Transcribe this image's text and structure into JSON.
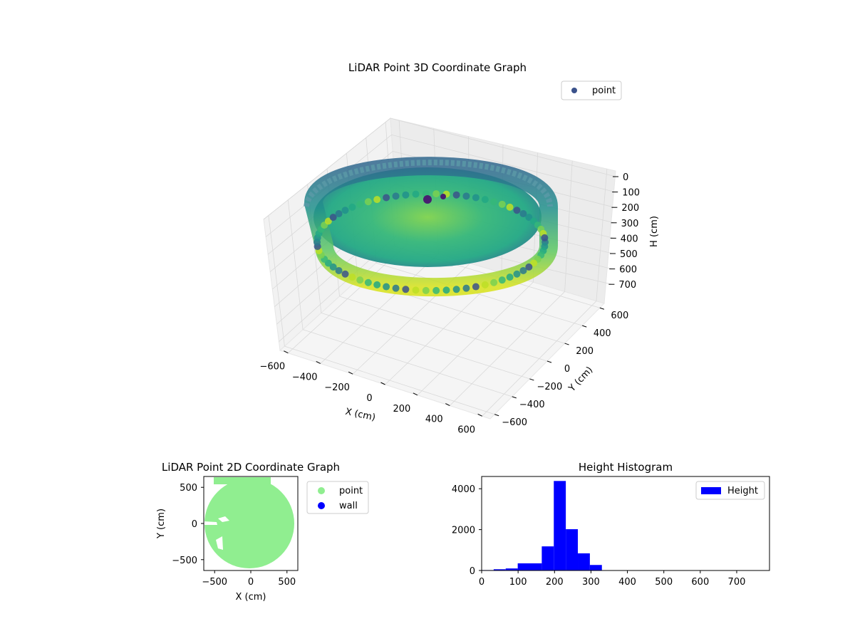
{
  "chart_data": [
    {
      "type": "scatter",
      "subtype": "3d",
      "title": "LiDAR Point 3D Coordinate Graph",
      "xlabel": "X (cm)",
      "ylabel": "Y (cm)",
      "zlabel": "H (cm)",
      "xticks": [
        "−600",
        "−400",
        "−200",
        "0",
        "200",
        "400",
        "600"
      ],
      "yticks": [
        "−600",
        "−400",
        "−200",
        "0",
        "200",
        "400",
        "600"
      ],
      "zticks": [
        "0",
        "100",
        "200",
        "300",
        "400",
        "500",
        "600",
        "700"
      ],
      "xlim": [
        -650,
        650
      ],
      "ylim": [
        -650,
        650
      ],
      "zlim": [
        0,
        750
      ],
      "z_inverted": true,
      "grid": true,
      "legend": {
        "position": "top-right",
        "entries": [
          {
            "label": "point",
            "color": "#3b528b"
          }
        ]
      },
      "colormap": "viridis"
    },
    {
      "type": "scatter",
      "title": "LiDAR Point 2D Coordinate Graph",
      "xlabel": "X (cm)",
      "ylabel": "Y (cm)",
      "xticks": [
        "−500",
        "0",
        "500"
      ],
      "yticks": [
        "500",
        "0",
        "−500"
      ],
      "xlim": [
        -650,
        650
      ],
      "ylim": [
        -650,
        650
      ],
      "grid": false,
      "series": [
        {
          "name": "point",
          "color": "#90ee90"
        },
        {
          "name": "wall",
          "color": "#0000ff"
        }
      ],
      "legend": {
        "position": "outside-right",
        "entries": [
          "point",
          "wall"
        ]
      }
    },
    {
      "type": "bar",
      "subtype": "histogram",
      "title": "Height Histogram",
      "xlabel": "",
      "ylabel": "",
      "xticks": [
        "0",
        "100",
        "200",
        "300",
        "400",
        "500",
        "600",
        "700"
      ],
      "yticks": [
        "0",
        "2000",
        "4000"
      ],
      "xlim": [
        0,
        790
      ],
      "ylim": [
        0,
        4600
      ],
      "bin_width": 33,
      "bins": [
        {
          "x0": 0,
          "x1": 33,
          "count": 20
        },
        {
          "x0": 33,
          "x1": 66,
          "count": 60
        },
        {
          "x0": 66,
          "x1": 99,
          "count": 100
        },
        {
          "x0": 99,
          "x1": 132,
          "count": 350
        },
        {
          "x0": 132,
          "x1": 165,
          "count": 350
        },
        {
          "x0": 165,
          "x1": 198,
          "count": 1180
        },
        {
          "x0": 198,
          "x1": 231,
          "count": 4380
        },
        {
          "x0": 231,
          "x1": 264,
          "count": 2020
        },
        {
          "x0": 264,
          "x1": 297,
          "count": 840
        },
        {
          "x0": 297,
          "x1": 330,
          "count": 270
        }
      ],
      "series": [
        {
          "name": "Height",
          "color": "#0000ff"
        }
      ],
      "legend": {
        "position": "top-right",
        "entries": [
          "Height"
        ]
      }
    }
  ]
}
